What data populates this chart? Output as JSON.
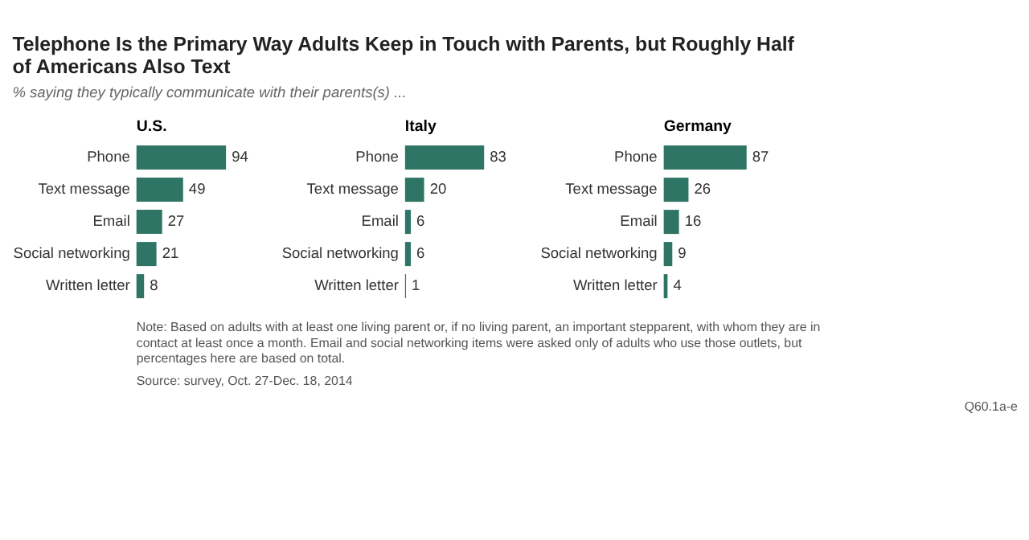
{
  "chart_data": [
    {
      "type": "bar",
      "orientation": "horizontal",
      "title": "U.S.",
      "categories": [
        "Phone",
        "Text message",
        "Email",
        "Social networking",
        "Written letter"
      ],
      "values": [
        94,
        49,
        27,
        21,
        8
      ],
      "color": "#2e7566",
      "data_labels": true,
      "tick_labels": "y"
    },
    {
      "type": "bar",
      "orientation": "horizontal",
      "title": "Italy",
      "categories": [
        "Phone",
        "Text message",
        "Email",
        "Social networking",
        "Written letter"
      ],
      "values": [
        83,
        20,
        6,
        6,
        1
      ],
      "color": "#2e7566",
      "data_labels": true,
      "tick_labels": "y"
    },
    {
      "type": "bar",
      "orientation": "horizontal",
      "title": "Germany",
      "categories": [
        "Phone",
        "Text message",
        "Email",
        "Social networking",
        "Written letter"
      ],
      "values": [
        87,
        26,
        16,
        9,
        4
      ],
      "color": "#2e7566",
      "data_labels": true,
      "tick_labels": "y"
    },
    {
      "type": "other",
      "title": "Telephone Is the Primary Way Adults Keep in Touch with Parents, but Roughly Half of Americans Also Text",
      "subtitle": "% saying they typically communicate with their parents(s) ...",
      "annotations": [
        "Note: Based on adults with at least one living parent or, if no living parent, an important stepparent, with whom they are in contact at least once a month. Email and social networking items were asked only of adults who use those outlets, but percentages here are based on total.",
        "Source: survey, Oct. 27-Dec. 18, 2014",
        "Q60.1a-e"
      ]
    }
  ]
}
